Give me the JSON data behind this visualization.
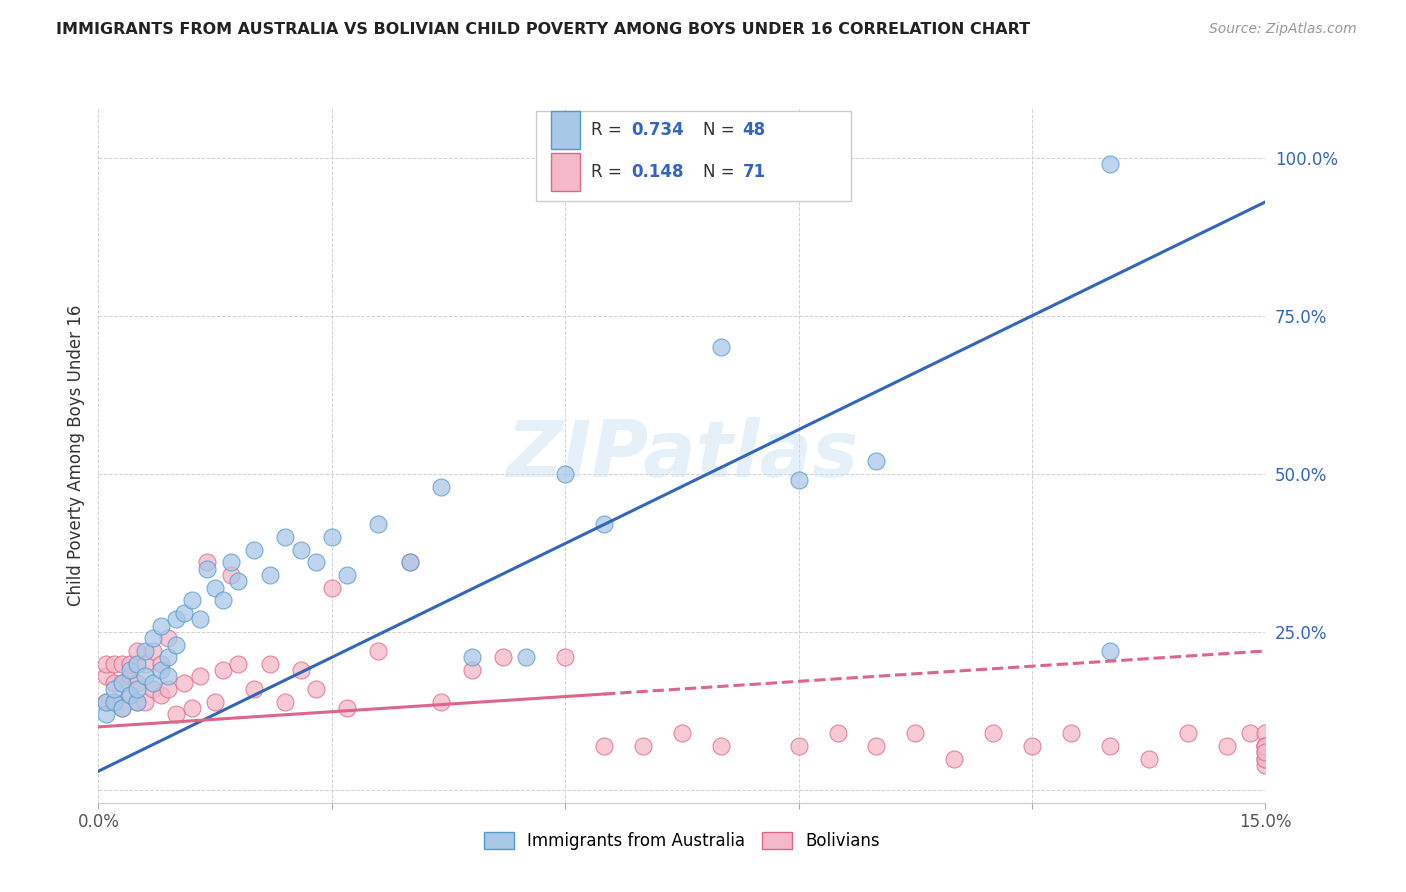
{
  "title": "IMMIGRANTS FROM AUSTRALIA VS BOLIVIAN CHILD POVERTY AMONG BOYS UNDER 16 CORRELATION CHART",
  "source": "Source: ZipAtlas.com",
  "ylabel": "Child Poverty Among Boys Under 16",
  "x_min": 0.0,
  "x_max": 0.15,
  "y_min": -0.02,
  "y_max": 1.08,
  "y_ticks": [
    0.0,
    0.25,
    0.5,
    0.75,
    1.0
  ],
  "y_tick_labels": [
    "",
    "25.0%",
    "50.0%",
    "75.0%",
    "100.0%"
  ],
  "x_ticks": [
    0.0,
    0.03,
    0.06,
    0.09,
    0.12,
    0.15
  ],
  "x_tick_labels": [
    "0.0%",
    "",
    "",
    "",
    "",
    "15.0%"
  ],
  "blue_color": "#a8c8e8",
  "blue_edge_color": "#5599cc",
  "blue_line_color": "#3366bb",
  "pink_color": "#f4b8c8",
  "pink_edge_color": "#dd6688",
  "pink_line_color": "#dd6688",
  "watermark": "ZIPatlas",
  "legend_R1": "0.734",
  "legend_N1": "48",
  "legend_R2": "0.148",
  "legend_N2": "71",
  "blue_line_intercept": 0.03,
  "blue_line_slope": 6.0,
  "pink_line_intercept": 0.1,
  "pink_line_slope": 0.8,
  "blue_x": [
    0.001,
    0.001,
    0.002,
    0.002,
    0.003,
    0.003,
    0.004,
    0.004,
    0.005,
    0.005,
    0.005,
    0.006,
    0.006,
    0.007,
    0.007,
    0.008,
    0.008,
    0.009,
    0.009,
    0.01,
    0.01,
    0.011,
    0.012,
    0.013,
    0.014,
    0.015,
    0.016,
    0.017,
    0.018,
    0.02,
    0.022,
    0.024,
    0.026,
    0.028,
    0.03,
    0.032,
    0.036,
    0.04,
    0.044,
    0.048,
    0.055,
    0.06,
    0.065,
    0.08,
    0.09,
    0.1,
    0.13,
    0.13
  ],
  "blue_y": [
    0.12,
    0.14,
    0.14,
    0.16,
    0.13,
    0.17,
    0.15,
    0.19,
    0.14,
    0.16,
    0.2,
    0.18,
    0.22,
    0.17,
    0.24,
    0.19,
    0.26,
    0.18,
    0.21,
    0.23,
    0.27,
    0.28,
    0.3,
    0.27,
    0.35,
    0.32,
    0.3,
    0.36,
    0.33,
    0.38,
    0.34,
    0.4,
    0.38,
    0.36,
    0.4,
    0.34,
    0.42,
    0.36,
    0.48,
    0.21,
    0.21,
    0.5,
    0.42,
    0.7,
    0.49,
    0.52,
    0.99,
    0.22
  ],
  "pink_x": [
    0.001,
    0.001,
    0.001,
    0.002,
    0.002,
    0.002,
    0.003,
    0.003,
    0.003,
    0.004,
    0.004,
    0.004,
    0.005,
    0.005,
    0.005,
    0.006,
    0.006,
    0.007,
    0.007,
    0.008,
    0.008,
    0.009,
    0.009,
    0.01,
    0.011,
    0.012,
    0.013,
    0.014,
    0.015,
    0.016,
    0.017,
    0.018,
    0.02,
    0.022,
    0.024,
    0.026,
    0.028,
    0.03,
    0.032,
    0.036,
    0.04,
    0.044,
    0.048,
    0.052,
    0.06,
    0.065,
    0.07,
    0.075,
    0.08,
    0.09,
    0.095,
    0.1,
    0.105,
    0.11,
    0.115,
    0.12,
    0.125,
    0.13,
    0.135,
    0.14,
    0.145,
    0.148,
    0.15,
    0.15,
    0.15,
    0.15,
    0.15,
    0.15,
    0.15,
    0.15,
    0.15
  ],
  "pink_y": [
    0.14,
    0.18,
    0.2,
    0.14,
    0.17,
    0.2,
    0.13,
    0.17,
    0.2,
    0.15,
    0.18,
    0.2,
    0.14,
    0.17,
    0.22,
    0.14,
    0.2,
    0.16,
    0.22,
    0.15,
    0.2,
    0.16,
    0.24,
    0.12,
    0.17,
    0.13,
    0.18,
    0.36,
    0.14,
    0.19,
    0.34,
    0.2,
    0.16,
    0.2,
    0.14,
    0.19,
    0.16,
    0.32,
    0.13,
    0.22,
    0.36,
    0.14,
    0.19,
    0.21,
    0.21,
    0.07,
    0.07,
    0.09,
    0.07,
    0.07,
    0.09,
    0.07,
    0.09,
    0.05,
    0.09,
    0.07,
    0.09,
    0.07,
    0.05,
    0.09,
    0.07,
    0.09,
    0.05,
    0.07,
    0.09,
    0.06,
    0.04,
    0.07,
    0.05,
    0.07,
    0.06
  ]
}
